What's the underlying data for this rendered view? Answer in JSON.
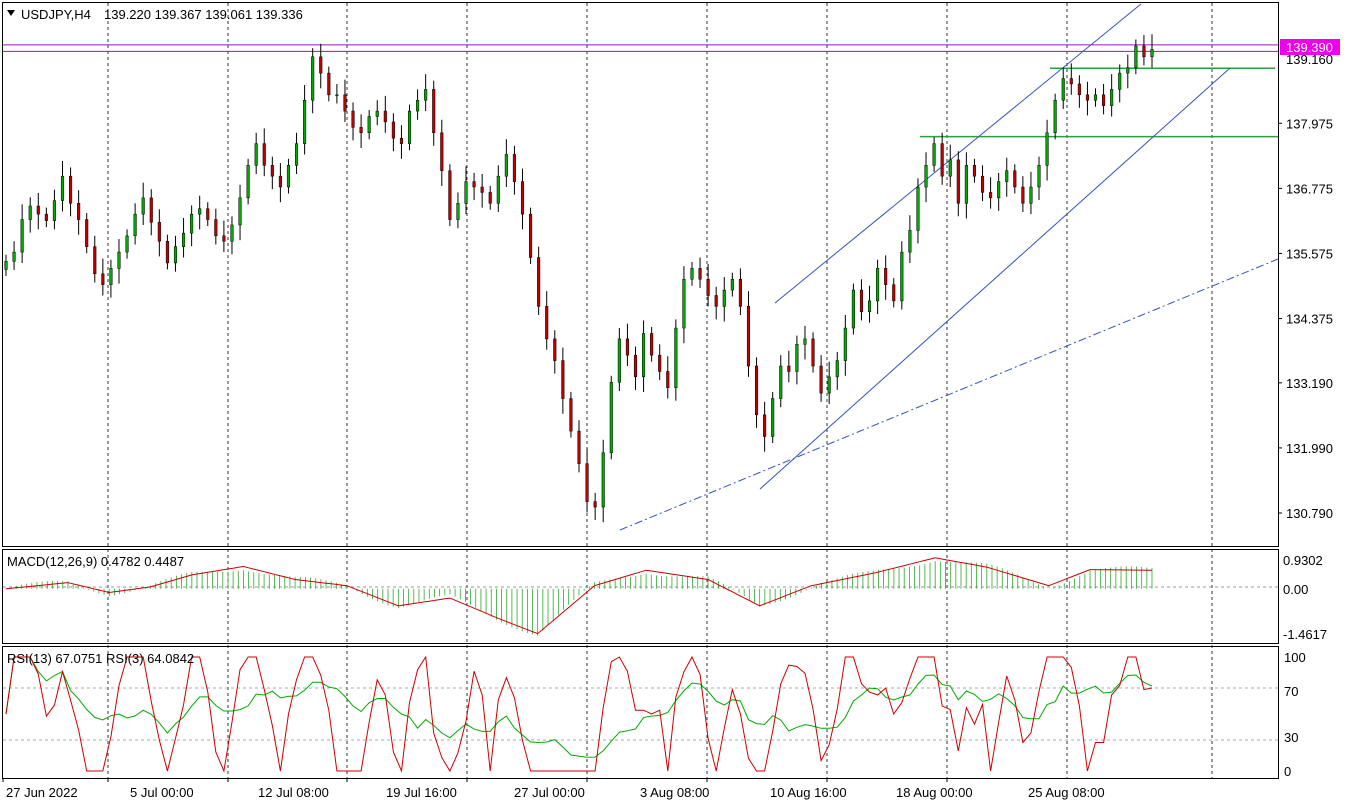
{
  "chart_data": {
    "type": "candlestick",
    "main": {
      "symbol_label": "USDJPY,H4",
      "ohlc_text": "139.220 139.367 139.061 139.336",
      "price_ticks": [
        "139.160",
        "137.975",
        "136.775",
        "135.575",
        "134.375",
        "133.190",
        "131.990",
        "130.790"
      ],
      "tick_values": [
        139.16,
        137.975,
        136.775,
        135.575,
        134.375,
        133.19,
        131.99,
        130.79
      ],
      "current_price_label": "139.390",
      "current_price": 139.39,
      "ylim": [
        130.35,
        139.95
      ],
      "closes": [
        135.43,
        135.6,
        136.2,
        136.45,
        136.3,
        136.18,
        136.55,
        137.0,
        136.5,
        136.2,
        135.7,
        135.2,
        135.0,
        135.3,
        135.6,
        135.9,
        136.3,
        136.6,
        136.15,
        135.8,
        135.4,
        135.7,
        135.95,
        136.3,
        136.4,
        136.2,
        135.9,
        135.8,
        136.1,
        136.6,
        137.2,
        137.6,
        137.2,
        137.0,
        136.8,
        137.2,
        137.6,
        138.4,
        139.2,
        138.9,
        138.5,
        138.5,
        138.2,
        137.9,
        137.8,
        138.1,
        138.2,
        138.0,
        137.7,
        137.6,
        138.2,
        138.4,
        138.6,
        137.8,
        137.1,
        136.2,
        136.5,
        136.9,
        136.8,
        136.7,
        136.5,
        137.0,
        137.4,
        136.9,
        136.3,
        135.5,
        134.6,
        134.0,
        133.6,
        132.9,
        132.3,
        131.7,
        131.0,
        130.9,
        131.9,
        133.2,
        134.0,
        133.7,
        133.3,
        134.1,
        133.7,
        133.4,
        133.1,
        134.2,
        135.1,
        135.3,
        135.1,
        134.8,
        134.6,
        134.9,
        135.1,
        134.6,
        133.5,
        132.6,
        132.2,
        132.9,
        133.5,
        133.4,
        133.9,
        134.0,
        133.5,
        133.0,
        133.3,
        133.6,
        134.2,
        134.9,
        134.5,
        134.7,
        135.3,
        135.0,
        134.7,
        135.6,
        136.0,
        136.8,
        137.2,
        137.6,
        137.0,
        137.3,
        136.5,
        137.2,
        137.0,
        136.7,
        136.6,
        136.9,
        137.1,
        136.8,
        136.5,
        136.8,
        137.2,
        137.8,
        138.4,
        138.8,
        138.7,
        138.5,
        138.4,
        138.5,
        138.3,
        138.6,
        138.9,
        139.0,
        139.4,
        139.2,
        139.336
      ],
      "horizontal_levels": [
        139.42,
        139.3,
        138.99,
        137.73
      ]
    },
    "x_ticks": [
      "27 Jun 2022",
      "5 Jul 00:00",
      "12 Jul 08:00",
      "19 Jul 16:00",
      "27 Jul 00:00",
      "3 Aug 08:00",
      "10 Aug 16:00",
      "18 Aug 00:00",
      "25 Aug 08:00"
    ],
    "macd": {
      "label": "MACD(12,26,9) 0.4782 0.4487",
      "ticks": [
        "0.9302",
        "0.00",
        "-1.4617"
      ],
      "tick_values": [
        0.9302,
        0.0,
        -1.4617
      ],
      "ylim": [
        -1.78,
        1.25
      ],
      "signal_keypoints": [
        [
          0,
          0.0
        ],
        [
          12,
          0.2
        ],
        [
          20,
          -0.12
        ],
        [
          28,
          0.06
        ],
        [
          36,
          0.45
        ],
        [
          46,
          0.72
        ],
        [
          56,
          0.3
        ],
        [
          66,
          0.1
        ],
        [
          76,
          -0.55
        ],
        [
          86,
          -0.3
        ],
        [
          96,
          -1.0
        ],
        [
          103,
          -1.45
        ],
        [
          114,
          0.1
        ],
        [
          124,
          0.6
        ],
        [
          136,
          0.3
        ],
        [
          146,
          -0.55
        ],
        [
          156,
          0.1
        ],
        [
          168,
          0.5
        ],
        [
          180,
          1.0
        ],
        [
          190,
          0.7
        ],
        [
          202,
          0.1
        ],
        [
          210,
          0.62
        ],
        [
          222,
          0.6
        ]
      ]
    },
    "rsi": {
      "label": "RSI(13) 67.0751  RSI(3) 64.0842",
      "ticks": [
        "100",
        "70",
        "30",
        "0"
      ],
      "tick_values": [
        100,
        70,
        30,
        0
      ],
      "ylim": [
        -6,
        107
      ]
    },
    "colors": {
      "bull": "#00aa00",
      "bear": "#c00000",
      "wick": "#000000",
      "support_line": "#2e9e3e",
      "magenta_line": "#a010c0",
      "channel_line": "#3355bb",
      "price_tag": "#ee00ee",
      "macd_hist": "#2ea82e",
      "macd_signal": "#cc0000",
      "rsi_fast": "#cc0000",
      "rsi_slow": "#00aa00"
    }
  }
}
